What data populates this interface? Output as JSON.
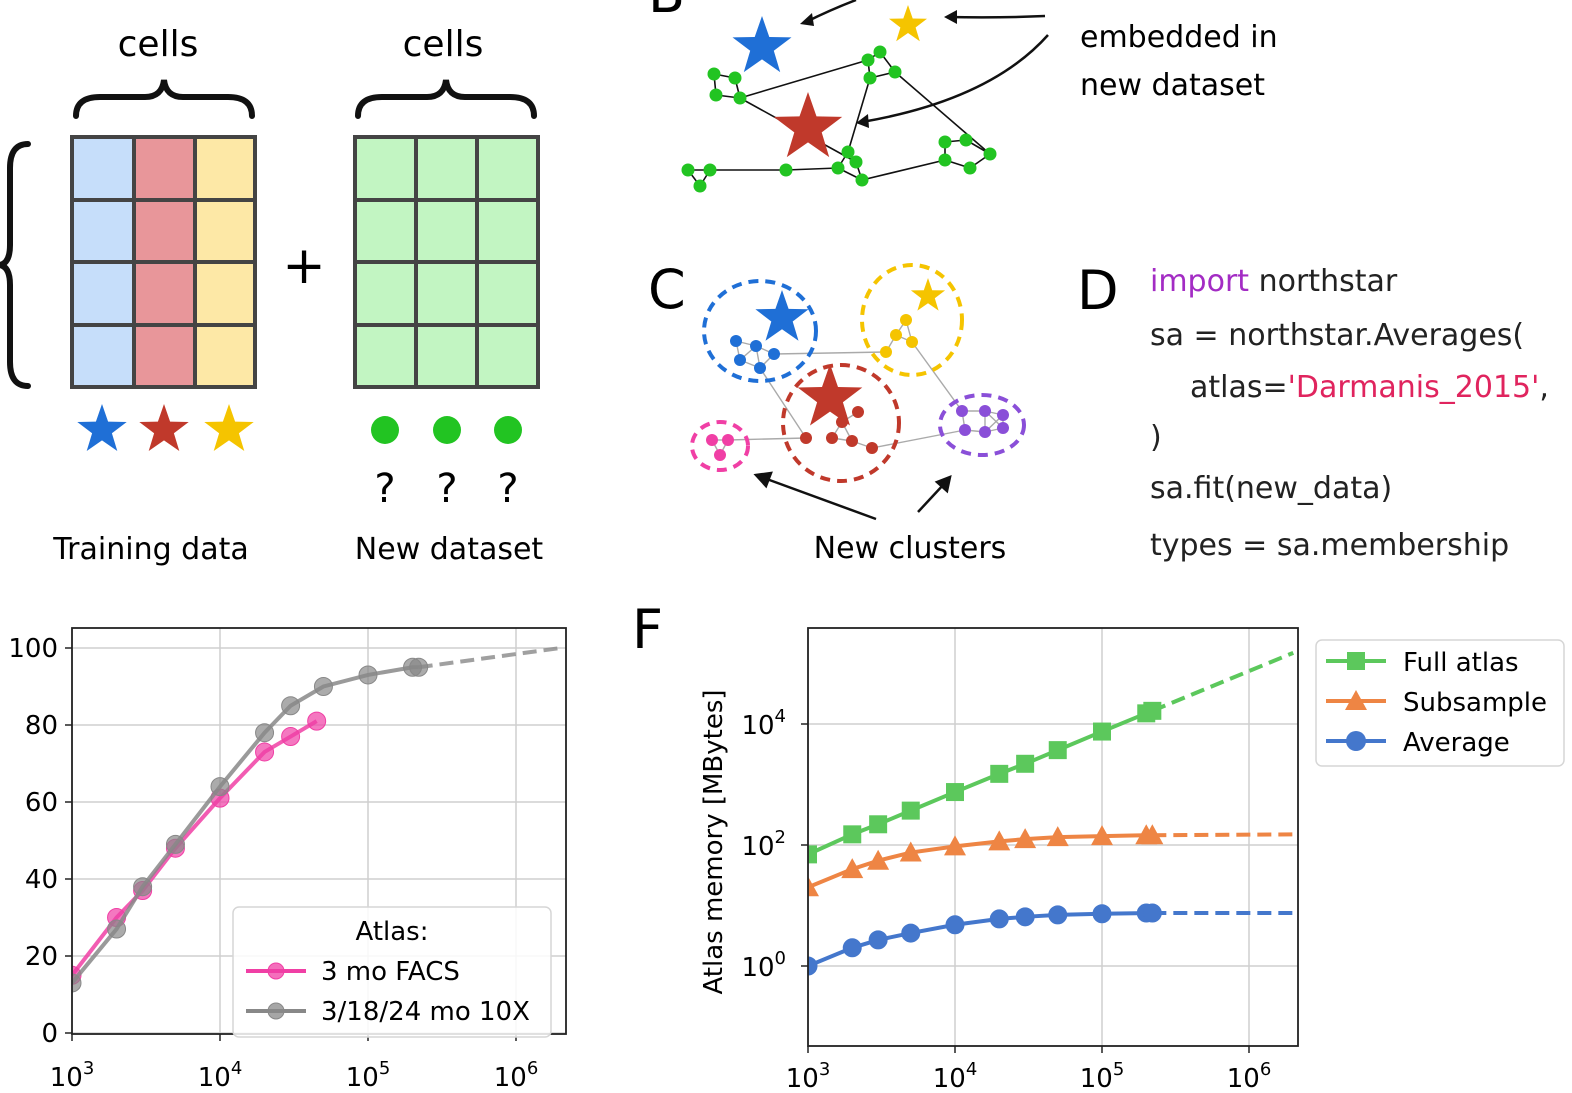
{
  "panel_a": {
    "header_left": "cells",
    "header_right": "cells",
    "plus": "+",
    "training_label": "Training data",
    "new_label": "New dataset",
    "question_marks": [
      "?",
      "?",
      "?"
    ]
  },
  "panel_b": {
    "letter": "B",
    "annotation_lines": [
      "embedded in",
      "new dataset"
    ]
  },
  "panel_c": {
    "letter": "C",
    "label": "New clusters"
  },
  "panel_d": {
    "letter": "D",
    "code_keyword": "import",
    "code_line1_rest": " northstar",
    "code_line2": "sa = northstar.Averages(",
    "code_line3_prefix": "atlas=",
    "code_line3_string": "'Darmanis_2015'",
    "code_line3_suffix": ",",
    "code_line4": ")",
    "code_line5": "sa.fit(new_data)",
    "code_line6": "types = sa.membership"
  },
  "panel_f": {
    "letter": "F"
  },
  "colors": {
    "blue": "#1f6fd6",
    "red": "#c0392b",
    "yellow": "#f5c400",
    "green": "#22c422",
    "pink": "#f03fa5",
    "purple": "#8a4fd8",
    "grey": "#888888",
    "full_atlas": "#5cc85c",
    "subsample": "#ee8544",
    "average": "#4477cc"
  },
  "chart_data": [
    {
      "type": "line",
      "x_scale": "log",
      "xlim": [
        1000,
        2000000
      ],
      "ylim": [
        0,
        100
      ],
      "x_ticks": [
        "10^3",
        "10^4",
        "10^5",
        "10^6"
      ],
      "y_ticks": [
        "0",
        "20",
        "40",
        "60",
        "80",
        "100"
      ],
      "grid": true,
      "legend_title": "Atlas:",
      "legend_position": "lower-right",
      "series": [
        {
          "name": "3 mo FACS",
          "color": "#f03fa5",
          "x": [
            1000,
            2000,
            3000,
            5000,
            10000,
            20000,
            30000,
            45000
          ],
          "y": [
            15,
            30,
            37,
            48,
            61,
            73,
            77,
            81
          ]
        },
        {
          "name": "3/18/24 mo 10X",
          "color": "#888888",
          "x": [
            1000,
            2000,
            3000,
            5000,
            10000,
            20000,
            30000,
            50000,
            100000,
            200000,
            220000
          ],
          "y": [
            13,
            27,
            38,
            49,
            64,
            78,
            85,
            90,
            93,
            95,
            95
          ],
          "extrapolation": {
            "x": [
              220000,
              2000000
            ],
            "y": [
              95,
              100
            ]
          }
        }
      ]
    },
    {
      "type": "line",
      "x_scale": "log",
      "y_scale": "log",
      "xlim": [
        1000,
        2000000
      ],
      "ylim": [
        0.03,
        300000
      ],
      "ylabel": "Atlas memory [MBytes]",
      "x_ticks": [
        "10^3",
        "10^4",
        "10^5",
        "10^6"
      ],
      "y_ticks": [
        "10^0",
        "10^2",
        "10^4"
      ],
      "grid": true,
      "legend_position": "outside-right",
      "series": [
        {
          "name": "Full atlas",
          "marker": "square",
          "color": "#5cc85c",
          "x": [
            1000,
            2000,
            3000,
            5000,
            10000,
            20000,
            30000,
            50000,
            100000,
            200000,
            220000
          ],
          "y": [
            70,
            150,
            220,
            370,
            750,
            1500,
            2200,
            3700,
            7500,
            15000,
            16500
          ],
          "extrapolation": {
            "x": [
              220000,
              2000000
            ],
            "y": [
              16500,
              150000
            ]
          }
        },
        {
          "name": "Subsample",
          "marker": "triangle",
          "color": "#ee8544",
          "x": [
            1000,
            2000,
            3000,
            5000,
            10000,
            20000,
            30000,
            50000,
            100000,
            200000,
            220000
          ],
          "y": [
            20,
            40,
            55,
            75,
            95,
            115,
            125,
            135,
            140,
            145,
            145
          ],
          "extrapolation": {
            "x": [
              220000,
              2000000
            ],
            "y": [
              145,
              150
            ]
          }
        },
        {
          "name": "Average",
          "marker": "circle",
          "color": "#4477cc",
          "x": [
            1000,
            2000,
            3000,
            5000,
            10000,
            20000,
            30000,
            50000,
            100000,
            200000,
            220000
          ],
          "y": [
            1,
            2,
            2.7,
            3.5,
            4.8,
            6,
            6.5,
            7,
            7.3,
            7.5,
            7.5
          ],
          "extrapolation": {
            "x": [
              220000,
              2000000
            ],
            "y": [
              7.5,
              7.5
            ]
          }
        }
      ]
    }
  ]
}
